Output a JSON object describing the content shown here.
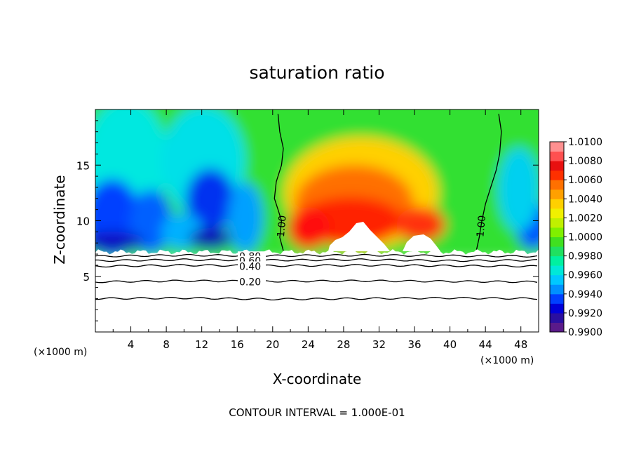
{
  "chart_data": {
    "type": "heatmap",
    "title": "saturation ratio",
    "xlabel": "X-coordinate",
    "ylabel": "Z-coordinate",
    "x_unit_left": "(×1000 m)",
    "x_unit_right": "(×1000 m)",
    "xlim": [
      0,
      50
    ],
    "ylim": [
      0,
      20
    ],
    "x_ticks": [
      4,
      8,
      12,
      16,
      20,
      24,
      28,
      32,
      36,
      40,
      44,
      48
    ],
    "y_ticks": [
      5,
      10,
      15
    ],
    "footer": "CONTOUR INTERVAL = 1.000E-01",
    "colorbar": {
      "min": 0.99,
      "max": 1.01,
      "labels": [
        "1.0100",
        "1.0080",
        "1.0060",
        "1.0040",
        "1.0020",
        "1.0000",
        "0.9980",
        "0.9960",
        "0.9940",
        "0.9920",
        "0.9900"
      ],
      "colors": [
        "#5a1a8a",
        "#2a0fa0",
        "#0000d8",
        "#0040ff",
        "#0090ff",
        "#00c8ff",
        "#00e8d8",
        "#00f0a0",
        "#20e060",
        "#40e020",
        "#80f000",
        "#c0f000",
        "#f0f000",
        "#ffd000",
        "#ffa000",
        "#ff7000",
        "#ff3000",
        "#e81010",
        "#ff5050",
        "#ff9090"
      ]
    },
    "contours": [
      {
        "label": "1.00",
        "x": [
          20.6,
          20.8,
          21.2,
          21.0,
          20.4,
          20.2,
          20.6,
          21.0,
          20.8,
          21.2
        ],
        "y": [
          19.6,
          18.0,
          16.5,
          15.0,
          13.5,
          12.0,
          11.0,
          10.0,
          8.5,
          7.3
        ]
      },
      {
        "label": "1.00",
        "x": [
          45.5,
          45.8,
          45.6,
          45.2,
          44.6,
          44.0,
          43.6,
          43.3,
          43.0
        ],
        "y": [
          19.6,
          18.0,
          16.0,
          14.5,
          13.0,
          11.5,
          10.0,
          8.5,
          7.4
        ]
      },
      {
        "label": "0.80",
        "x": [
          0,
          10,
          20,
          30,
          40,
          50
        ],
        "y": [
          6.8,
          6.9,
          6.85,
          6.9,
          6.85,
          6.8
        ]
      },
      {
        "label": "0.60",
        "x": [
          0,
          10,
          20,
          30,
          40,
          50
        ],
        "y": [
          6.4,
          6.5,
          6.45,
          6.5,
          6.4,
          6.45
        ]
      },
      {
        "label": "0.40",
        "x": [
          0,
          10,
          20,
          30,
          40,
          50
        ],
        "y": [
          5.9,
          6.0,
          5.95,
          6.0,
          5.95,
          5.9
        ]
      },
      {
        "label": "0.20",
        "x": [
          0,
          10,
          20,
          30,
          40,
          50
        ],
        "y": [
          4.5,
          4.6,
          4.55,
          4.6,
          4.55,
          4.5
        ]
      },
      {
        "label": "",
        "x": [
          0,
          10,
          20,
          30,
          40,
          50
        ],
        "y": [
          3.0,
          3.05,
          2.95,
          3.0,
          3.05,
          3.0
        ]
      }
    ]
  }
}
